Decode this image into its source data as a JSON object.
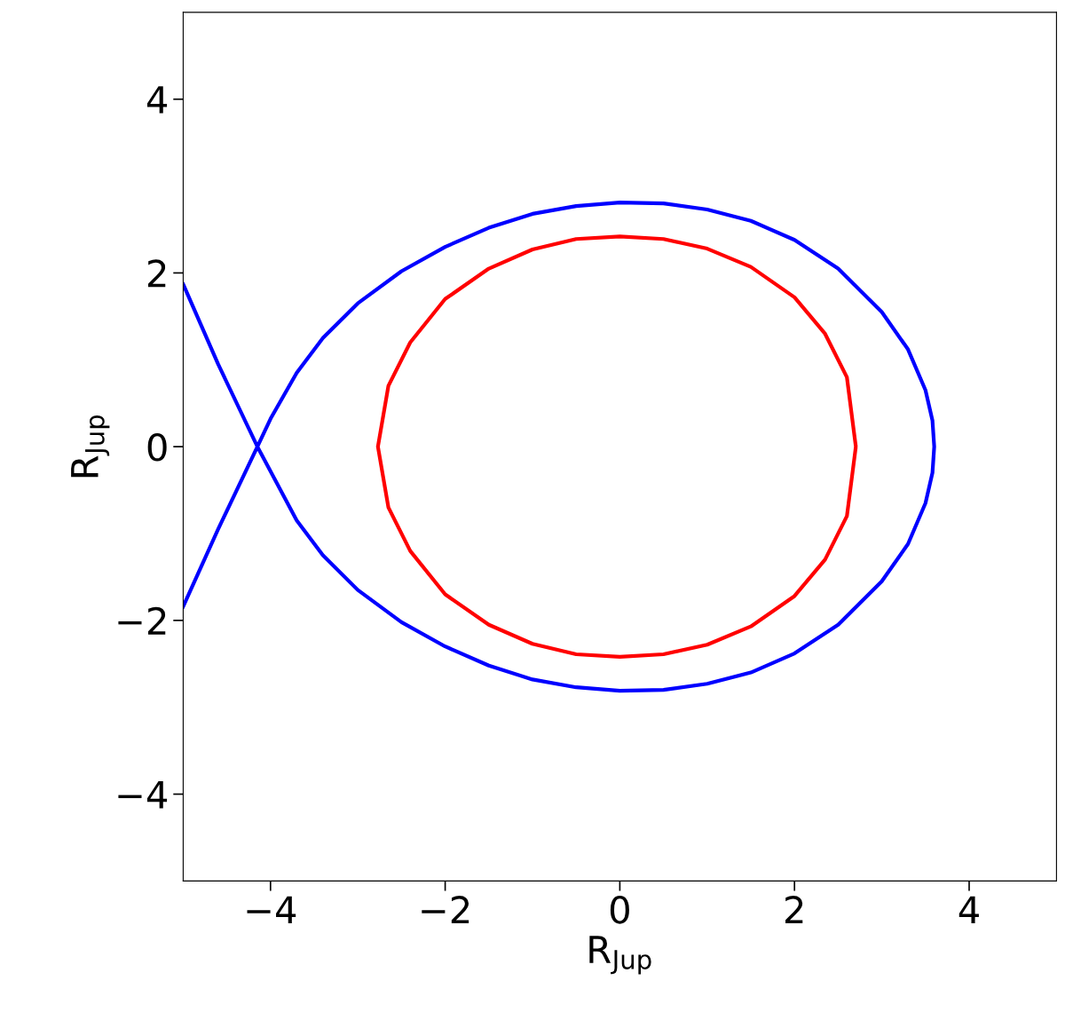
{
  "chart_data": {
    "type": "line",
    "xlabel": "R$_{Jup}$",
    "ylabel": "R$_{Jup}$",
    "xlim": [
      -5,
      5
    ],
    "ylim": [
      -5,
      5
    ],
    "xticks": [
      {
        "value": -4,
        "label": "−4"
      },
      {
        "value": -2,
        "label": "−2"
      },
      0,
      2,
      4
    ],
    "yticks": [
      {
        "value": -4,
        "label": "−4"
      },
      {
        "value": -2,
        "label": "−2"
      },
      0,
      2,
      4
    ],
    "grid": false,
    "marker": "none",
    "line_style": "solid",
    "series": [
      {
        "color": "#0000ff",
        "x": [
          -5,
          -4.6,
          -4.15,
          -3.7,
          -3.4,
          -3.0,
          -2.5,
          -2.0,
          -1.5,
          -1.0,
          -0.5,
          0,
          0.5,
          1.0,
          1.5,
          2.0,
          2.5,
          3.0,
          3.3,
          3.5,
          3.58,
          3.6,
          3.58,
          3.5,
          3.3,
          3.0,
          2.5,
          2.0,
          1.5,
          1.0,
          0.5,
          0,
          -0.5,
          -1.0,
          -1.5,
          -2.0,
          -2.5,
          -3.0,
          -3.4,
          -3.7,
          -4.0,
          -4.15,
          -4.6,
          -5
        ],
        "values": [
          1.87,
          0.95,
          0,
          -0.85,
          -1.25,
          -1.65,
          -2.02,
          -2.3,
          -2.52,
          -2.68,
          -2.77,
          -2.81,
          -2.8,
          -2.73,
          -2.6,
          -2.38,
          -2.05,
          -1.55,
          -1.12,
          -0.65,
          -0.3,
          0,
          0.3,
          0.65,
          1.12,
          1.55,
          2.05,
          2.38,
          2.6,
          2.73,
          2.8,
          2.81,
          2.77,
          2.68,
          2.52,
          2.3,
          2.02,
          1.65,
          1.25,
          0.85,
          0.32,
          0,
          -0.95,
          -1.84
        ]
      },
      {
        "color": "#ff0000",
        "x": [
          2.7,
          2.6,
          2.35,
          2.0,
          1.5,
          1.0,
          0.5,
          0,
          -0.5,
          -1.0,
          -1.5,
          -2.0,
          -2.4,
          -2.65,
          -2.77,
          -2.65,
          -2.4,
          -2.0,
          -1.5,
          -1.0,
          -0.5,
          0,
          0.5,
          1.0,
          1.5,
          2.0,
          2.35,
          2.6,
          2.7
        ],
        "values": [
          0.02,
          0.8,
          1.3,
          1.72,
          2.07,
          2.28,
          2.39,
          2.42,
          2.39,
          2.27,
          2.05,
          1.7,
          1.2,
          0.7,
          0,
          -0.7,
          -1.2,
          -1.7,
          -2.05,
          -2.27,
          -2.39,
          -2.42,
          -2.39,
          -2.28,
          -2.07,
          -1.72,
          -1.3,
          -0.8,
          -0.02
        ]
      }
    ]
  }
}
